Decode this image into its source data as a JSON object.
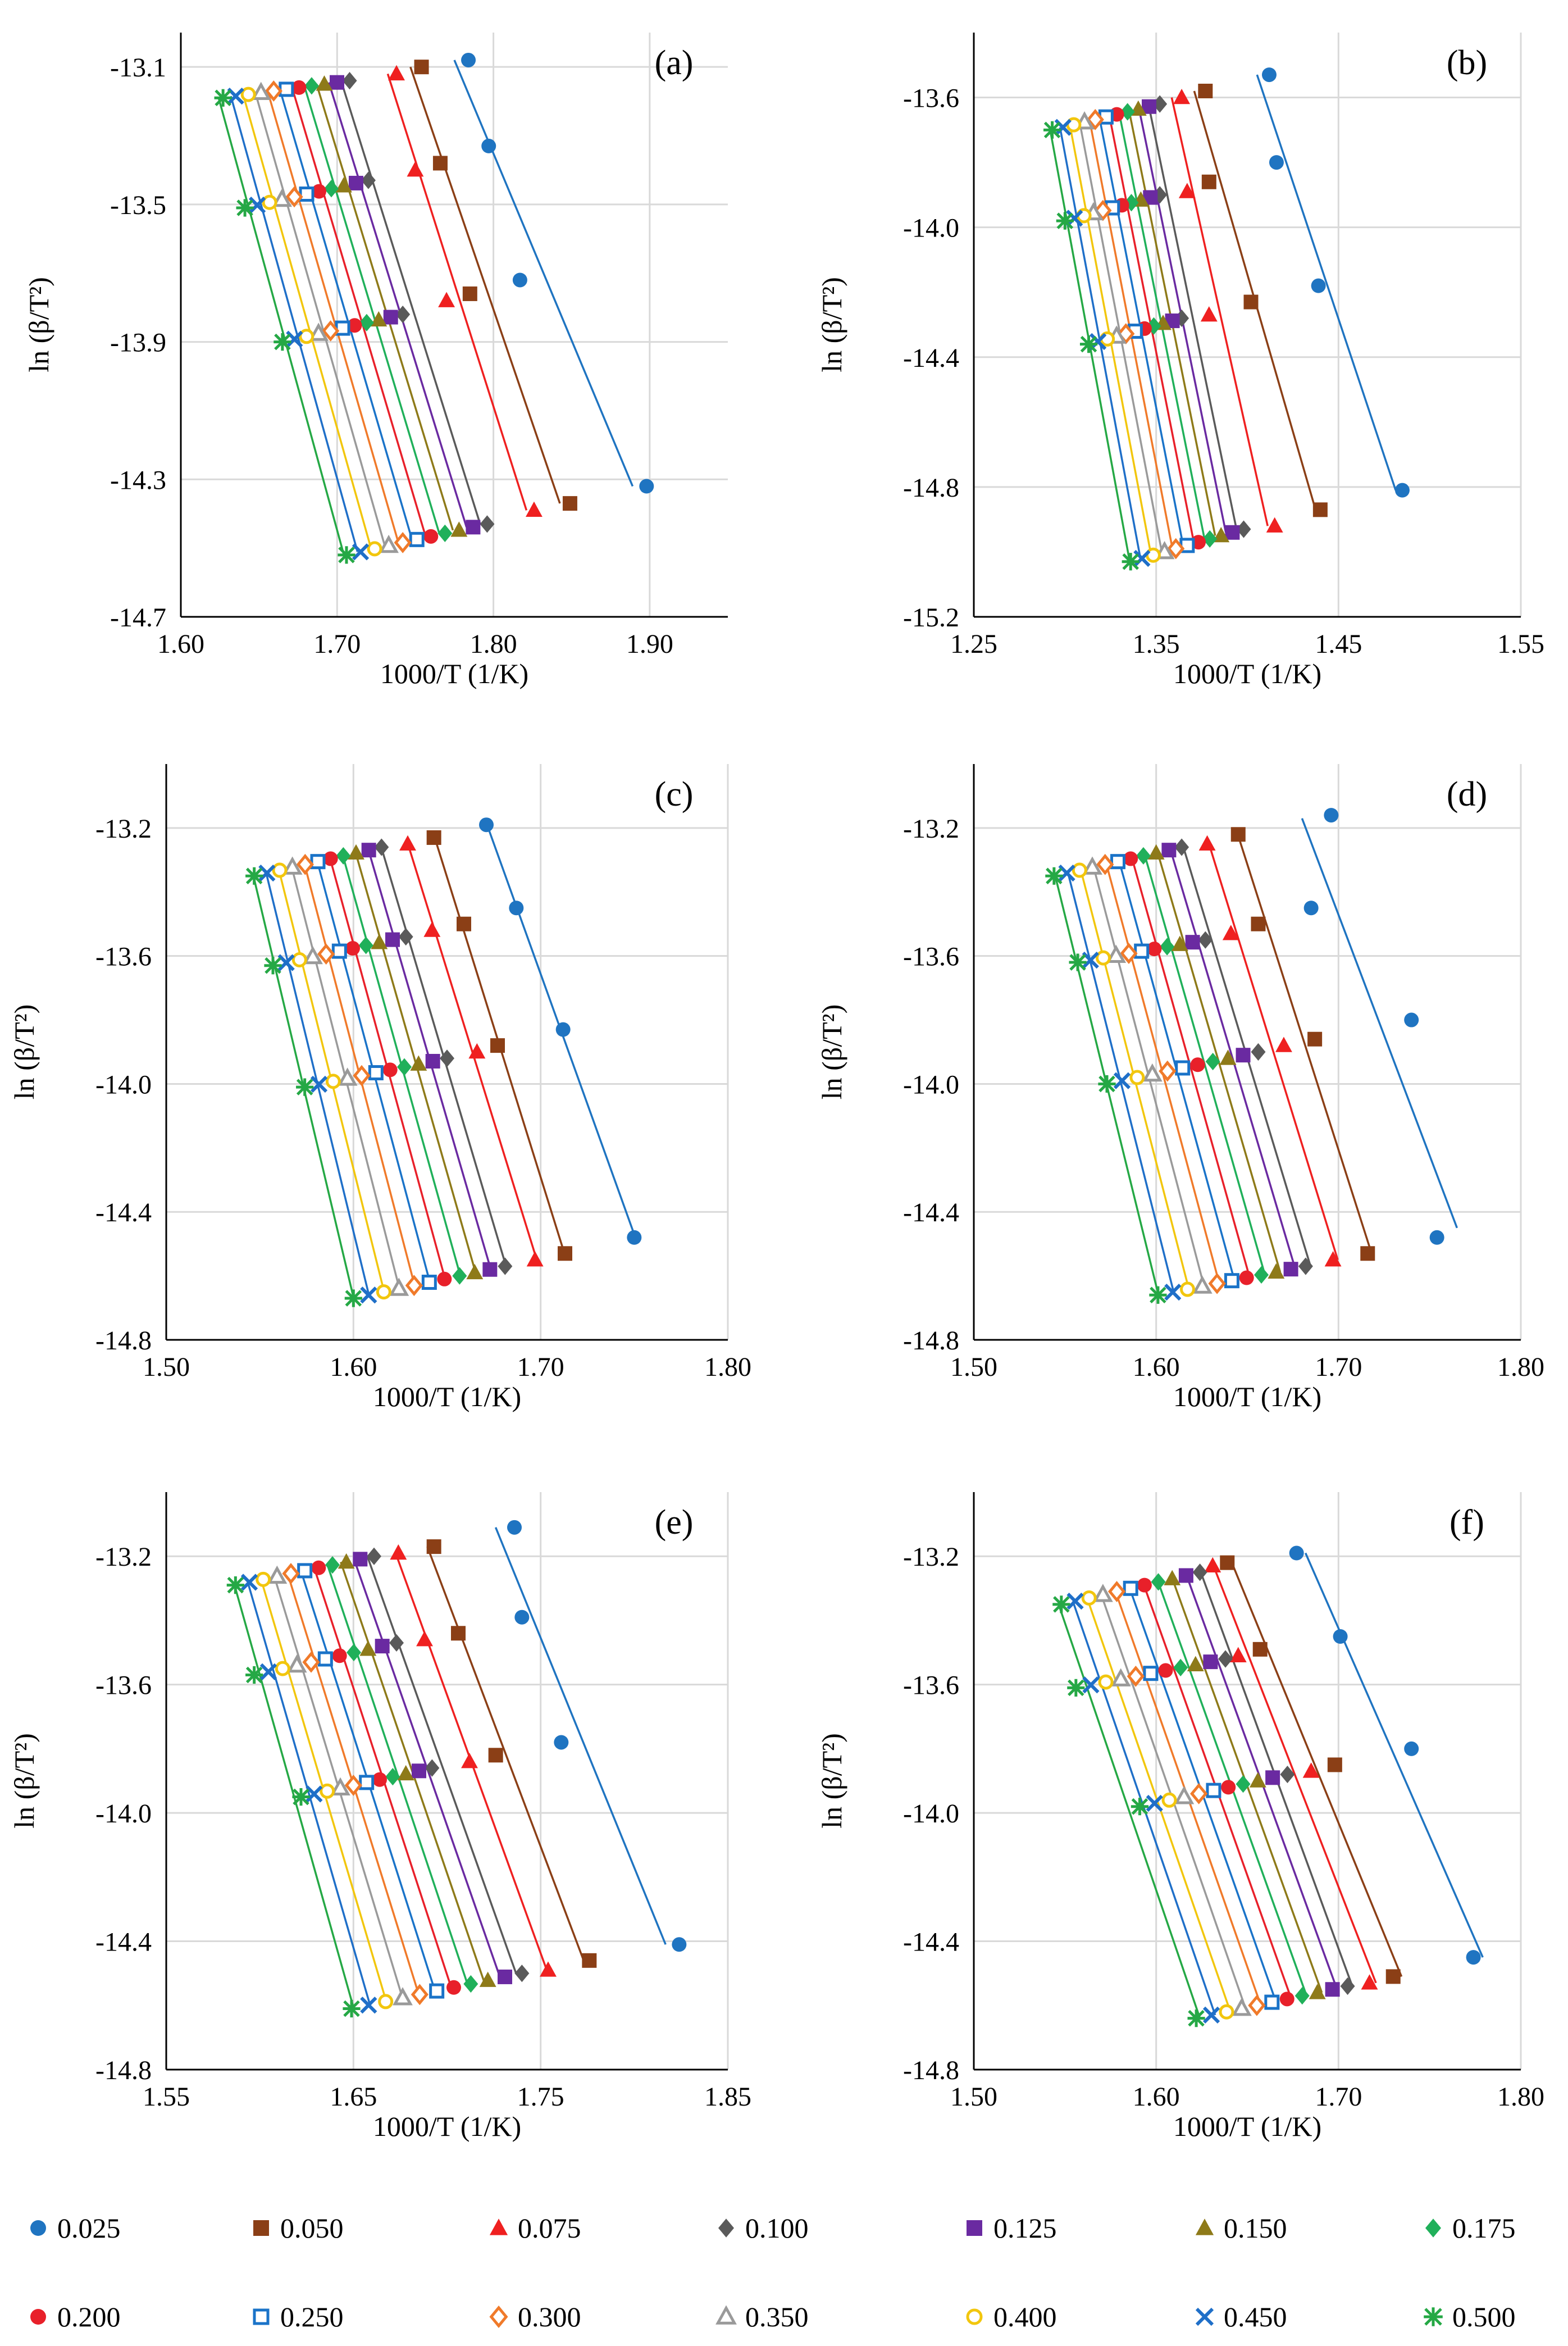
{
  "colors": {
    "0.025": "#1f74c1",
    "0.050": "#8b3f16",
    "0.075": "#ef2020",
    "0.100": "#5a5a5a",
    "0.125": "#6a2aa1",
    "0.150": "#8e7a19",
    "0.175": "#20b05a",
    "0.200": "#e8202a",
    "0.250": "#1a73c8",
    "0.300": "#f07a2a",
    "0.350": "#9a9a9a",
    "0.400": "#f2c60d",
    "0.450": "#1f6fc8",
    "0.500": "#25a845"
  },
  "legend": {
    "entries": [
      {
        "label": "0.025",
        "marker": "circle"
      },
      {
        "label": "0.050",
        "marker": "square"
      },
      {
        "label": "0.075",
        "marker": "triangle"
      },
      {
        "label": "0.100",
        "marker": "diamond"
      },
      {
        "label": "0.125",
        "marker": "square"
      },
      {
        "label": "0.150",
        "marker": "triangle"
      },
      {
        "label": "0.175",
        "marker": "diamond"
      },
      {
        "label": "0.200",
        "marker": "circle"
      },
      {
        "label": "0.250",
        "marker": "open-square"
      },
      {
        "label": "0.300",
        "marker": "open-diamond"
      },
      {
        "label": "0.350",
        "marker": "open-triangle"
      },
      {
        "label": "0.400",
        "marker": "open-circle"
      },
      {
        "label": "0.450",
        "marker": "x"
      },
      {
        "label": "0.500",
        "marker": "star"
      }
    ]
  },
  "chart_data": [
    {
      "panel": "(a)",
      "type": "scatter",
      "xlabel": "1000/T (1/K)",
      "ylabel": "ln (β/T²)",
      "xlim": [
        1.6,
        1.95
      ],
      "ylim": [
        -14.7,
        -13.0
      ],
      "xticks": [
        "1.60",
        "1.70",
        "1.80",
        "1.90"
      ],
      "yticks": [
        "-13.1",
        "-13.5",
        "-13.9",
        "-14.3",
        "-14.7"
      ],
      "ytick_values": [
        -13.1,
        -13.5,
        -13.9,
        -14.3,
        -14.7
      ],
      "xtick_values": [
        1.6,
        1.7,
        1.8,
        1.9
      ],
      "beta_y": [
        -13.17,
        -13.49,
        -13.87,
        -14.5
      ],
      "conversions": [
        {
          "alpha": "0.025",
          "x": [
            1.784,
            1.797,
            1.817,
            1.898
          ],
          "y": [
            -13.08,
            -13.33,
            -13.72,
            -14.32
          ]
        },
        {
          "alpha": "0.050",
          "x": [
            1.754,
            1.766,
            1.785,
            1.849
          ],
          "y": [
            -13.1,
            -13.38,
            -13.76,
            -14.37
          ]
        },
        {
          "alpha": "0.075",
          "x": [
            1.738,
            1.75,
            1.77,
            1.826
          ],
          "y": [
            -13.12,
            -13.4,
            -13.78,
            -14.39
          ]
        }
      ],
      "first_x": [
        1.708,
        1.72,
        1.742,
        1.796
      ],
      "last_x": [
        1.627,
        1.641,
        1.665,
        1.706
      ],
      "first_y": [
        -13.14,
        -13.43,
        -13.82,
        -14.43
      ],
      "last_y": [
        -13.19,
        -13.51,
        -13.9,
        -14.52
      ]
    },
    {
      "panel": "(b)",
      "type": "scatter",
      "xlabel": "1000/T (1/K)",
      "ylabel": "ln (β/T²)",
      "xlim": [
        1.25,
        1.55
      ],
      "ylim": [
        -15.2,
        -13.4
      ],
      "xticks": [
        "1.25",
        "1.35",
        "1.45",
        "1.55"
      ],
      "yticks": [
        "-13.6",
        "-14.0",
        "-14.4",
        "-14.8",
        "-15.2"
      ],
      "ytick_values": [
        -13.6,
        -14.0,
        -14.4,
        -14.8,
        -15.2
      ],
      "xtick_values": [
        1.25,
        1.35,
        1.45,
        1.55
      ],
      "beta_y": [
        -13.68,
        -13.97,
        -14.35,
        -15.01
      ],
      "conversions": [
        {
          "alpha": "0.025",
          "x": [
            1.412,
            1.416,
            1.439,
            1.485
          ],
          "y": [
            -13.53,
            -13.8,
            -14.18,
            -14.81
          ]
        },
        {
          "alpha": "0.050",
          "x": [
            1.377,
            1.379,
            1.402,
            1.44
          ],
          "y": [
            -13.58,
            -13.86,
            -14.23,
            -14.87
          ]
        },
        {
          "alpha": "0.075",
          "x": [
            1.364,
            1.367,
            1.379,
            1.415
          ],
          "y": [
            -13.6,
            -13.89,
            -14.27,
            -14.92
          ]
        }
      ],
      "first_x": [
        1.352,
        1.352,
        1.364,
        1.398
      ],
      "last_x": [
        1.293,
        1.3,
        1.313,
        1.336
      ],
      "first_y": [
        -13.62,
        -13.9,
        -14.28,
        -14.93
      ],
      "last_y": [
        -13.7,
        -13.98,
        -14.36,
        -15.03
      ]
    },
    {
      "panel": "(c)",
      "type": "scatter",
      "xlabel": "1000/T (1/K)",
      "ylabel": "ln (β/T²)",
      "xlim": [
        1.5,
        1.8
      ],
      "ylim": [
        -14.8,
        -13.0
      ],
      "xticks": [
        "1.50",
        "1.60",
        "1.70",
        "1.80"
      ],
      "yticks": [
        "-13.2",
        "-13.6",
        "-14.0",
        "-14.4",
        "-14.8"
      ],
      "ytick_values": [
        -13.2,
        -13.6,
        -14.0,
        -14.4,
        -14.8
      ],
      "xtick_values": [
        1.5,
        1.6,
        1.7,
        1.8
      ],
      "beta_y": [
        -13.29,
        -13.58,
        -13.97,
        -14.62
      ],
      "conversions": [
        {
          "alpha": "0.025",
          "x": [
            1.671,
            1.687,
            1.712,
            1.75
          ],
          "y": [
            -13.19,
            -13.45,
            -13.83,
            -14.48
          ]
        },
        {
          "alpha": "0.050",
          "x": [
            1.643,
            1.659,
            1.677,
            1.713
          ],
          "y": [
            -13.23,
            -13.5,
            -13.88,
            -14.53
          ]
        },
        {
          "alpha": "0.075",
          "x": [
            1.629,
            1.642,
            1.666,
            1.697
          ],
          "y": [
            -13.25,
            -13.52,
            -13.9,
            -14.55
          ]
        }
      ],
      "first_x": [
        1.615,
        1.628,
        1.65,
        1.681
      ],
      "last_x": [
        1.547,
        1.557,
        1.574,
        1.6
      ],
      "first_y": [
        -13.26,
        -13.54,
        -13.92,
        -14.57
      ],
      "last_y": [
        -13.35,
        -13.63,
        -14.01,
        -14.67
      ]
    },
    {
      "panel": "(d)",
      "type": "scatter",
      "xlabel": "1000/T (1/K)",
      "ylabel": "ln (β/T²)",
      "xlim": [
        1.5,
        1.8
      ],
      "ylim": [
        -14.8,
        -13.0
      ],
      "xticks": [
        "1.50",
        "1.60",
        "1.70",
        "1.80"
      ],
      "yticks": [
        "-13.2",
        "-13.6",
        "-14.0",
        "-14.4",
        "-14.8"
      ],
      "ytick_values": [
        -13.2,
        -13.6,
        -14.0,
        -14.4,
        -14.8
      ],
      "xtick_values": [
        1.5,
        1.6,
        1.7,
        1.8
      ],
      "beta_y": [
        -13.29,
        -13.58,
        -13.97,
        -14.62
      ],
      "conversions": [
        {
          "alpha": "0.025",
          "x": [
            1.696,
            1.685,
            1.74,
            1.754
          ],
          "y": [
            -13.16,
            -13.45,
            -13.8,
            -14.48
          ],
          "fit": [
            [
              1.68,
              -13.17
            ],
            [
              1.765,
              -14.45
            ]
          ]
        },
        {
          "alpha": "0.050",
          "x": [
            1.645,
            1.656,
            1.687,
            1.716
          ],
          "y": [
            -13.22,
            -13.5,
            -13.86,
            -14.53
          ]
        },
        {
          "alpha": "0.075",
          "x": [
            1.628,
            1.641,
            1.67,
            1.697
          ],
          "y": [
            -13.25,
            -13.53,
            -13.88,
            -14.55
          ]
        }
      ],
      "first_x": [
        1.614,
        1.627,
        1.656,
        1.682
      ],
      "last_x": [
        1.544,
        1.557,
        1.573,
        1.601
      ],
      "first_y": [
        -13.26,
        -13.55,
        -13.9,
        -14.57
      ],
      "last_y": [
        -13.35,
        -13.62,
        -14.0,
        -14.66
      ]
    },
    {
      "panel": "(e)",
      "type": "scatter",
      "xlabel": "1000/T (1/K)",
      "ylabel": "ln (β/T²)",
      "xlim": [
        1.55,
        1.85
      ],
      "ylim": [
        -14.8,
        -13.0
      ],
      "xticks": [
        "1.55",
        "1.65",
        "1.75",
        "1.85"
      ],
      "yticks": [
        "-13.2",
        "-13.6",
        "-14.0",
        "-14.4",
        "-14.8"
      ],
      "ytick_values": [
        -13.2,
        -13.6,
        -14.0,
        -14.4,
        -14.8
      ],
      "xtick_values": [
        1.55,
        1.65,
        1.75,
        1.85
      ],
      "beta_y": [
        -13.24,
        -13.53,
        -13.9,
        -14.56
      ],
      "conversions": [
        {
          "alpha": "0.025",
          "x": [
            1.736,
            1.74,
            1.761,
            1.824
          ],
          "y": [
            -13.11,
            -13.39,
            -13.78,
            -14.41
          ]
        },
        {
          "alpha": "0.050",
          "x": [
            1.693,
            1.706,
            1.726,
            1.776
          ],
          "y": [
            -13.17,
            -13.44,
            -13.82,
            -14.46
          ]
        },
        {
          "alpha": "0.075",
          "x": [
            1.674,
            1.688,
            1.712,
            1.754
          ],
          "y": [
            -13.19,
            -13.46,
            -13.84,
            -14.49
          ]
        }
      ],
      "first_x": [
        1.661,
        1.673,
        1.692,
        1.74
      ],
      "last_x": [
        1.587,
        1.597,
        1.622,
        1.649
      ],
      "first_y": [
        -13.2,
        -13.47,
        -13.86,
        -14.5
      ],
      "last_y": [
        -13.29,
        -13.57,
        -13.95,
        -14.61
      ]
    },
    {
      "panel": "(f)",
      "type": "scatter",
      "xlabel": "1000/T (1/K)",
      "ylabel": "ln (β/T²)",
      "xlim": [
        1.5,
        1.8
      ],
      "ylim": [
        -14.8,
        -13.0
      ],
      "xticks": [
        "1.50",
        "1.60",
        "1.70",
        "1.80"
      ],
      "yticks": [
        "-13.2",
        "-13.6",
        "-14.0",
        "-14.4",
        "-14.8"
      ],
      "ytick_values": [
        -13.2,
        -13.6,
        -14.0,
        -14.4,
        -14.8
      ],
      "xtick_values": [
        1.5,
        1.6,
        1.7,
        1.8
      ],
      "beta_y": [
        -13.28,
        -13.56,
        -13.95,
        -14.58
      ],
      "conversions": [
        {
          "alpha": "0.025",
          "x": [
            1.677,
            1.701,
            1.74,
            1.774
          ],
          "y": [
            -13.19,
            -13.45,
            -13.8,
            -14.45
          ]
        },
        {
          "alpha": "0.050",
          "x": [
            1.639,
            1.657,
            1.698,
            1.73
          ],
          "y": [
            -13.22,
            -13.49,
            -13.85,
            -14.51
          ]
        },
        {
          "alpha": "0.075",
          "x": [
            1.631,
            1.645,
            1.685,
            1.717
          ],
          "y": [
            -13.23,
            -13.51,
            -13.87,
            -14.53
          ]
        }
      ],
      "first_x": [
        1.624,
        1.638,
        1.672,
        1.705
      ],
      "last_x": [
        1.548,
        1.556,
        1.591,
        1.622
      ],
      "first_y": [
        -13.25,
        -13.52,
        -13.88,
        -14.54
      ],
      "last_y": [
        -13.35,
        -13.61,
        -13.98,
        -14.64
      ]
    }
  ]
}
